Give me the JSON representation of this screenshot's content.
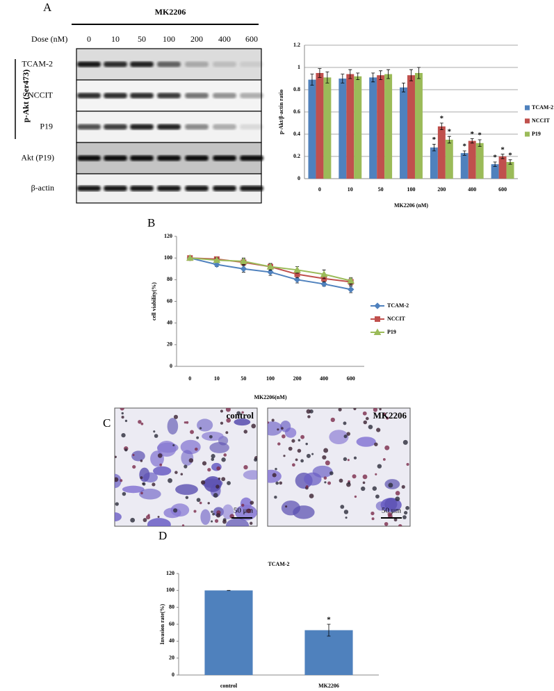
{
  "panel_labels": [
    "A",
    "B",
    "C",
    "D"
  ],
  "blot": {
    "treatment": "MK2206",
    "dose_label": "Dose (nM)",
    "doses": [
      "0",
      "10",
      "50",
      "100",
      "200",
      "400",
      "600"
    ],
    "group_label": "p-Akt (Ser473)",
    "rows": [
      "TCAM-2",
      "NCCIT",
      "P19",
      "Akt (P19)",
      "β-actin"
    ]
  },
  "micrographs": [
    {
      "label": "control",
      "scale": "50 μm"
    },
    {
      "label": "MK2206",
      "scale": "50 μm"
    }
  ],
  "chart_data": [
    {
      "type": "bar",
      "xlabel": "MK2206 (nM)",
      "ylabel": "p-Akt/β-actin ratio",
      "categories": [
        "0",
        "10",
        "50",
        "100",
        "200",
        "400",
        "600"
      ],
      "series": [
        {
          "name": "TCAM-2",
          "color": "#4f81bd",
          "values": [
            0.89,
            0.9,
            0.91,
            0.82,
            0.28,
            0.23,
            0.13
          ],
          "errors": [
            0.05,
            0.04,
            0.04,
            0.04,
            0.03,
            0.02,
            0.02
          ],
          "markers": [
            null,
            null,
            null,
            null,
            "*",
            "*",
            "*"
          ]
        },
        {
          "name": "NCCIT",
          "color": "#c0504d",
          "values": [
            0.95,
            0.94,
            0.93,
            0.93,
            0.47,
            0.34,
            0.2
          ],
          "errors": [
            0.04,
            0.04,
            0.04,
            0.05,
            0.03,
            0.02,
            0.02
          ],
          "markers": [
            null,
            null,
            null,
            null,
            "*",
            "*",
            "*"
          ]
        },
        {
          "name": "P19",
          "color": "#9bbb59",
          "values": [
            0.91,
            0.92,
            0.94,
            0.95,
            0.35,
            0.32,
            0.15
          ],
          "errors": [
            0.05,
            0.03,
            0.04,
            0.05,
            0.03,
            0.03,
            0.02
          ],
          "markers": [
            null,
            null,
            null,
            null,
            "*",
            "*",
            "*"
          ]
        }
      ],
      "ylim": [
        0,
        1.2
      ],
      "yticks": [
        0,
        0.2,
        0.4,
        0.6,
        0.8,
        1,
        1.2
      ],
      "grid": true,
      "legend": "right"
    },
    {
      "type": "line",
      "xlabel": "MK2206(nM)",
      "ylabel": "cell viability(%)",
      "categories": [
        "0",
        "10",
        "50",
        "100",
        "200",
        "400",
        "600"
      ],
      "series": [
        {
          "name": "TCAM-2",
          "color": "#4f81bd",
          "marker": "diamond",
          "values": [
            100,
            94,
            90,
            87,
            80,
            76,
            71
          ],
          "errors": [
            1,
            2,
            3,
            3,
            3,
            2,
            3
          ]
        },
        {
          "name": "NCCIT",
          "color": "#c0504d",
          "marker": "square",
          "values": [
            100,
            99,
            96,
            92,
            85,
            81,
            78
          ],
          "errors": [
            1,
            2,
            3,
            3,
            3,
            3,
            3
          ]
        },
        {
          "name": "P19",
          "color": "#9bbb59",
          "marker": "triangle",
          "values": [
            100,
            98,
            97,
            92,
            89,
            85,
            79
          ],
          "errors": [
            1,
            2,
            3,
            3,
            3,
            4,
            3
          ]
        }
      ],
      "ylim": [
        0,
        120
      ],
      "yticks": [
        0,
        20,
        40,
        60,
        80,
        100,
        120
      ],
      "grid": false,
      "legend": "right"
    },
    {
      "type": "bar",
      "title": "TCAM-2",
      "ylabel": "Invasion rate(%)",
      "categories": [
        "control",
        "MK2206"
      ],
      "series": [
        {
          "color": "#4f81bd",
          "values": [
            100,
            53
          ],
          "errors": [
            0,
            7
          ],
          "markers": [
            null,
            "*"
          ]
        }
      ],
      "ylim": [
        0,
        120
      ],
      "yticks": [
        0,
        20,
        40,
        60,
        80,
        100,
        120
      ],
      "grid": false
    }
  ]
}
